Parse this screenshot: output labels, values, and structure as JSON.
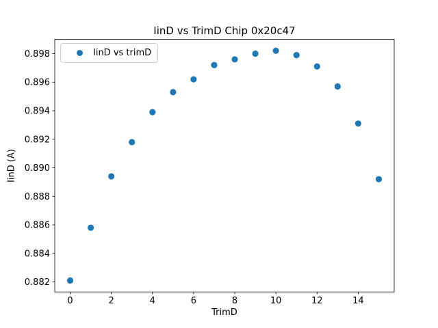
{
  "figure": {
    "background": "#ffffff"
  },
  "chart_data": {
    "type": "scatter",
    "title": "IinD vs TrimD Chip 0x20c47",
    "xlabel": "TrimD",
    "ylabel": "IinD (A)",
    "legend": {
      "entries": [
        "IinD vs trimD"
      ],
      "position": "upper left"
    },
    "x": [
      0,
      1,
      2,
      3,
      4,
      5,
      6,
      7,
      8,
      9,
      10,
      11,
      12,
      13,
      14,
      15
    ],
    "series": [
      {
        "name": "IinD vs trimD",
        "values": [
          0.8821,
          0.8858,
          0.8894,
          0.8918,
          0.8939,
          0.8953,
          0.8962,
          0.8972,
          0.8976,
          0.898,
          0.8982,
          0.8979,
          0.8971,
          0.8957,
          0.8931,
          0.8892
        ],
        "color": "#1f77b4",
        "marker": "circle"
      }
    ],
    "xlim": [
      -0.75,
      15.75
    ],
    "ylim": [
      0.8813,
      0.899
    ],
    "xticks": [
      0,
      2,
      4,
      6,
      8,
      10,
      12,
      14
    ],
    "xtick_labels": [
      "0",
      "2",
      "4",
      "6",
      "8",
      "10",
      "12",
      "14"
    ],
    "yticks": [
      0.882,
      0.884,
      0.886,
      0.888,
      0.89,
      0.892,
      0.894,
      0.896,
      0.898
    ],
    "ytick_labels": [
      "0.882",
      "0.884",
      "0.886",
      "0.888",
      "0.890",
      "0.892",
      "0.894",
      "0.896",
      "0.898"
    ],
    "grid": false,
    "axis_color": "#000000"
  }
}
